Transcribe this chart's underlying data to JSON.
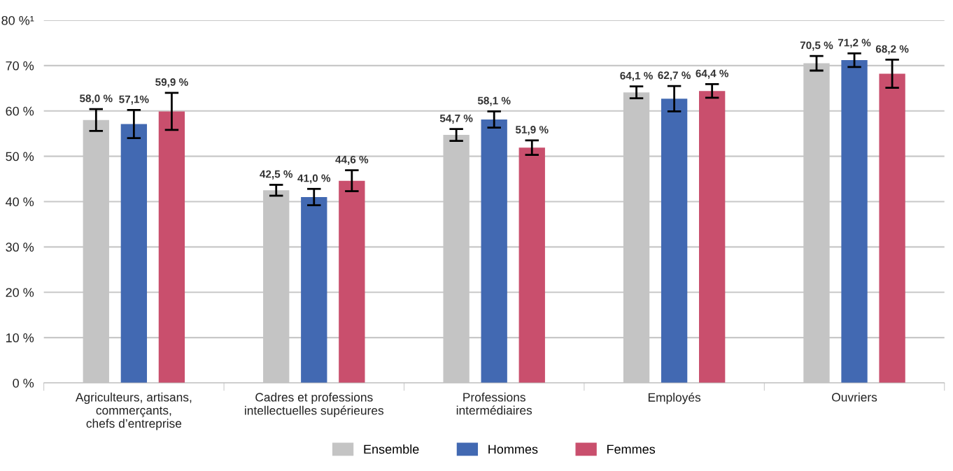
{
  "chart_data": {
    "type": "bar",
    "categories": [
      "Agriculteurs, artisans,\ncommerçants,\nchefs d’entreprise",
      "Cadres et professions\nintellectuelles supérieures",
      "Professions\nintermédiaires",
      "Employés",
      "Ouvriers"
    ],
    "series": [
      {
        "name": "Ensemble",
        "color": "#c4c4c4",
        "values": [
          58.0,
          42.5,
          54.7,
          64.1,
          70.5
        ],
        "errors": [
          2.4,
          1.2,
          1.3,
          1.3,
          1.6
        ],
        "value_labels": [
          "58,0 %",
          "42,5 %",
          "54,7 %",
          "64,1 %",
          "70,5 %"
        ]
      },
      {
        "name": "Hommes",
        "color": "#4269b2",
        "values": [
          57.1,
          41.0,
          58.1,
          62.7,
          71.2
        ],
        "errors": [
          3.1,
          1.8,
          1.8,
          2.8,
          1.5
        ],
        "value_labels": [
          "57,1%",
          "41,0 %",
          "58,1 %",
          "62,7 %",
          "71,2 %"
        ]
      },
      {
        "name": "Femmes",
        "color": "#c94f6d",
        "values": [
          59.9,
          44.6,
          51.9,
          64.4,
          68.2
        ],
        "errors": [
          4.1,
          2.3,
          1.6,
          1.5,
          3.1
        ],
        "value_labels": [
          "59,9 %",
          "44,6 %",
          "51,9 %",
          "64,4 %",
          "68,2 %"
        ]
      }
    ],
    "ylim": [
      0,
      80
    ],
    "yticks": [
      {
        "value": 0,
        "label": "0 %"
      },
      {
        "value": 10,
        "label": "10 %"
      },
      {
        "value": 20,
        "label": "20 %"
      },
      {
        "value": 30,
        "label": "30 %"
      },
      {
        "value": 40,
        "label": "40 %"
      },
      {
        "value": 50,
        "label": "50 %"
      },
      {
        "value": 60,
        "label": "60 %"
      },
      {
        "value": 70,
        "label": "70 %"
      },
      {
        "value": 80,
        "label": "80 %¹"
      }
    ],
    "grid": "y",
    "legend": "bottom"
  }
}
